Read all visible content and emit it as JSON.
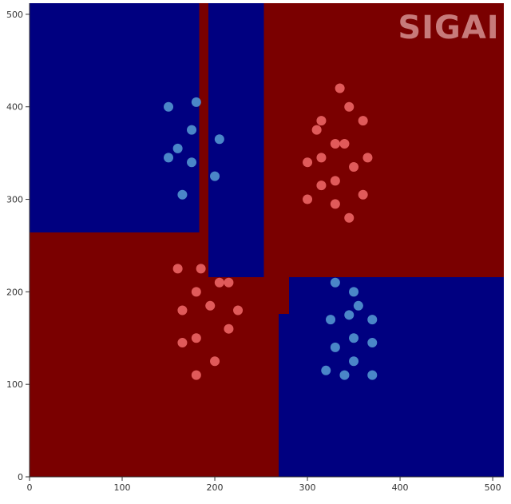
{
  "chart_data": {
    "type": "scatter",
    "xlim": [
      0,
      512
    ],
    "ylim": [
      0,
      512
    ],
    "x_ticks": [
      0,
      100,
      200,
      300,
      400,
      500
    ],
    "y_ticks": [
      0,
      100,
      200,
      300,
      400,
      500
    ],
    "grid": false,
    "background_color": "#7a0000",
    "regions": [
      {
        "class": "blue",
        "x0": 0,
        "x1": 183,
        "y0": 264,
        "y1": 512
      },
      {
        "class": "blue",
        "x0": 193,
        "x1": 253,
        "y0": 216,
        "y1": 512
      },
      {
        "class": "red",
        "x0": 279,
        "x1": 512,
        "y0": 216,
        "y1": 512
      },
      {
        "class": "blue",
        "x0": 280,
        "x1": 512,
        "y0": 0,
        "y1": 216
      },
      {
        "class": "blue",
        "x0": 269,
        "x1": 280,
        "y0": 0,
        "y1": 176
      }
    ],
    "series": [
      {
        "class": "blue",
        "points": [
          [
            150,
            400
          ],
          [
            180,
            405
          ],
          [
            175,
            375
          ],
          [
            160,
            355
          ],
          [
            205,
            365
          ],
          [
            150,
            345
          ],
          [
            175,
            340
          ],
          [
            200,
            325
          ],
          [
            165,
            305
          ],
          [
            330,
            210
          ],
          [
            350,
            200
          ],
          [
            355,
            185
          ],
          [
            325,
            170
          ],
          [
            345,
            175
          ],
          [
            370,
            170
          ],
          [
            330,
            140
          ],
          [
            350,
            150
          ],
          [
            370,
            145
          ],
          [
            350,
            125
          ],
          [
            320,
            115
          ],
          [
            340,
            110
          ],
          [
            370,
            110
          ]
        ]
      },
      {
        "class": "red",
        "points": [
          [
            335,
            420
          ],
          [
            345,
            400
          ],
          [
            360,
            385
          ],
          [
            315,
            385
          ],
          [
            310,
            375
          ],
          [
            330,
            360
          ],
          [
            340,
            360
          ],
          [
            300,
            340
          ],
          [
            315,
            345
          ],
          [
            350,
            335
          ],
          [
            365,
            345
          ],
          [
            315,
            315
          ],
          [
            330,
            320
          ],
          [
            360,
            305
          ],
          [
            300,
            300
          ],
          [
            330,
            295
          ],
          [
            345,
            280
          ],
          [
            160,
            225
          ],
          [
            185,
            225
          ],
          [
            180,
            200
          ],
          [
            205,
            210
          ],
          [
            215,
            210
          ],
          [
            165,
            180
          ],
          [
            195,
            185
          ],
          [
            225,
            180
          ],
          [
            180,
            150
          ],
          [
            215,
            160
          ],
          [
            165,
            145
          ],
          [
            200,
            125
          ],
          [
            180,
            110
          ]
        ]
      }
    ]
  },
  "colors": {
    "blue_region": "#000080",
    "red_region": "#7a0000",
    "blue_point": "#4a86c8",
    "red_point": "#e05a5a",
    "watermark": "#c77a7a"
  },
  "watermark": {
    "text": "SIGAI"
  }
}
